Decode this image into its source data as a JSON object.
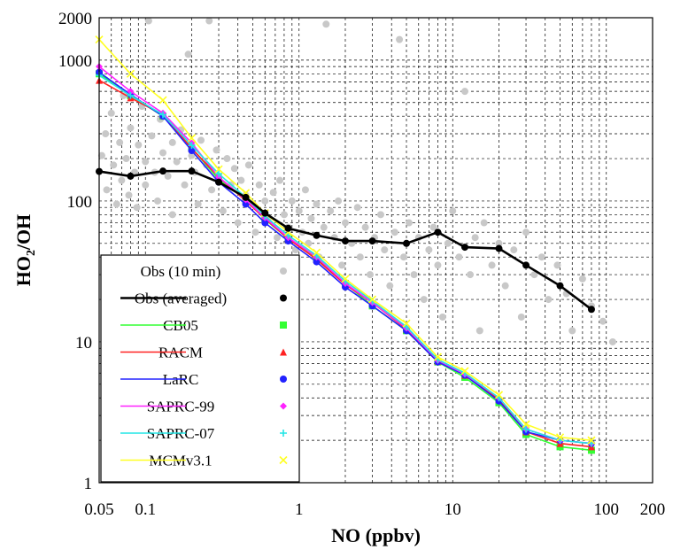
{
  "chart_data": {
    "type": "line",
    "xlabel": "NO (ppbv)",
    "ylabel_main": "HO",
    "ylabel_sub": "2",
    "ylabel_rest": "/OH",
    "x_scale": "log",
    "y_scale": "log",
    "xlim": [
      0.05,
      200
    ],
    "ylim": [
      1,
      2000
    ],
    "grid": true,
    "legend_position": "lower-left",
    "x_ticks": [
      {
        "value": 0.05,
        "label": "0.05"
      },
      {
        "value": 0.1,
        "label": "0.1"
      },
      {
        "value": 1,
        "label": "1"
      },
      {
        "value": 10,
        "label": "10"
      },
      {
        "value": 100,
        "label": "100"
      },
      {
        "value": 200,
        "label": "200"
      }
    ],
    "y_ticks": [
      {
        "value": 1,
        "label": "1"
      },
      {
        "value": 10,
        "label": "10"
      },
      {
        "value": 100,
        "label": "100"
      },
      {
        "value": 1000,
        "label": "1000"
      },
      {
        "value": 2000,
        "label": "2000"
      }
    ],
    "x": [
      0.05,
      0.08,
      0.13,
      0.2,
      0.3,
      0.45,
      0.6,
      0.85,
      1.3,
      2,
      3,
      5,
      8,
      12,
      20,
      30,
      50,
      80
    ],
    "scatter": {
      "name": "Obs (10 min)",
      "color": "#c8c8c8",
      "points": [
        [
          0.052,
          210
        ],
        [
          0.055,
          300
        ],
        [
          0.056,
          120
        ],
        [
          0.06,
          420
        ],
        [
          0.062,
          180
        ],
        [
          0.065,
          95
        ],
        [
          0.068,
          260
        ],
        [
          0.07,
          140
        ],
        [
          0.072,
          560
        ],
        [
          0.075,
          200
        ],
        [
          0.078,
          110
        ],
        [
          0.08,
          330
        ],
        [
          0.085,
          160
        ],
        [
          0.088,
          90
        ],
        [
          0.09,
          250
        ],
        [
          0.095,
          470
        ],
        [
          0.1,
          190
        ],
        [
          0.1,
          130
        ],
        [
          0.105,
          1900
        ],
        [
          0.11,
          290
        ],
        [
          0.115,
          160
        ],
        [
          0.12,
          100
        ],
        [
          0.125,
          380
        ],
        [
          0.13,
          220
        ],
        [
          0.14,
          150
        ],
        [
          0.15,
          260
        ],
        [
          0.15,
          80
        ],
        [
          0.16,
          190
        ],
        [
          0.17,
          320
        ],
        [
          0.18,
          130
        ],
        [
          0.19,
          1100
        ],
        [
          0.2,
          210
        ],
        [
          0.21,
          160
        ],
        [
          0.22,
          95
        ],
        [
          0.23,
          270
        ],
        [
          0.25,
          180
        ],
        [
          0.26,
          1900
        ],
        [
          0.27,
          120
        ],
        [
          0.29,
          230
        ],
        [
          0.3,
          150
        ],
        [
          0.32,
          85
        ],
        [
          0.34,
          200
        ],
        [
          0.36,
          130
        ],
        [
          0.38,
          170
        ],
        [
          0.4,
          70
        ],
        [
          0.42,
          140
        ],
        [
          0.45,
          110
        ],
        [
          0.47,
          180
        ],
        [
          0.5,
          95
        ],
        [
          0.52,
          60
        ],
        [
          0.55,
          130
        ],
        [
          0.6,
          100
        ],
        [
          0.63,
          75
        ],
        [
          0.68,
          115
        ],
        [
          0.72,
          55
        ],
        [
          0.75,
          140
        ],
        [
          0.8,
          80
        ],
        [
          0.85,
          65
        ],
        [
          0.9,
          100
        ],
        [
          0.95,
          45
        ],
        [
          1.0,
          85
        ],
        [
          1.05,
          60
        ],
        [
          1.1,
          120
        ],
        [
          1.15,
          50
        ],
        [
          1.2,
          75
        ],
        [
          1.3,
          95
        ],
        [
          1.35,
          40
        ],
        [
          1.45,
          65
        ],
        [
          1.5,
          1800
        ],
        [
          1.6,
          85
        ],
        [
          1.7,
          55
        ],
        [
          1.8,
          100
        ],
        [
          1.9,
          35
        ],
        [
          2.0,
          70
        ],
        [
          2.2,
          50
        ],
        [
          2.4,
          90
        ],
        [
          2.5,
          40
        ],
        [
          2.7,
          65
        ],
        [
          2.9,
          30
        ],
        [
          3.1,
          55
        ],
        [
          3.4,
          80
        ],
        [
          3.6,
          45
        ],
        [
          3.9,
          25
        ],
        [
          4.2,
          60
        ],
        [
          4.5,
          1400
        ],
        [
          4.8,
          40
        ],
        [
          5.2,
          70
        ],
        [
          5.6,
          30
        ],
        [
          6.0,
          55
        ],
        [
          6.5,
          20
        ],
        [
          7.0,
          45
        ],
        [
          7.5,
          65
        ],
        [
          8.0,
          35
        ],
        [
          8.6,
          15
        ],
        [
          9.3,
          50
        ],
        [
          10,
          85
        ],
        [
          11,
          40
        ],
        [
          12,
          600
        ],
        [
          13,
          30
        ],
        [
          14,
          55
        ],
        [
          15,
          12
        ],
        [
          16,
          70
        ],
        [
          18,
          35
        ],
        [
          20,
          50
        ],
        [
          22,
          25
        ],
        [
          25,
          45
        ],
        [
          28,
          15
        ],
        [
          30,
          60
        ],
        [
          34,
          30
        ],
        [
          38,
          40
        ],
        [
          42,
          20
        ],
        [
          48,
          35
        ],
        [
          55,
          22
        ],
        [
          60,
          12
        ],
        [
          70,
          28
        ],
        [
          80,
          18
        ],
        [
          95,
          14
        ],
        [
          110,
          10
        ]
      ]
    },
    "series": [
      {
        "name": "Obs (averaged)",
        "color": "#000000",
        "marker": "circle",
        "values": [
          162,
          150,
          163,
          163,
          136,
          106,
          82,
          64,
          57,
          52,
          52,
          50,
          60,
          47,
          46,
          35,
          25,
          17
        ]
      },
      {
        "name": "CB05",
        "color": "#33ff33",
        "marker": "square",
        "values": [
          800,
          560,
          400,
          238,
          142,
          102,
          74,
          54,
          39,
          26,
          18,
          12,
          7.2,
          5.6,
          3.7,
          2.2,
          1.8,
          1.7
        ]
      },
      {
        "name": "RACM",
        "color": "#ff2222",
        "marker": "triangle",
        "values": [
          720,
          540,
          410,
          236,
          148,
          100,
          75,
          54,
          38.5,
          25.5,
          19,
          12.3,
          7.3,
          5.8,
          3.9,
          2.3,
          1.9,
          1.8
        ]
      },
      {
        "name": "LaRC",
        "color": "#2222ff",
        "marker": "circle",
        "values": [
          820,
          570,
          400,
          228,
          136,
          95,
          70,
          52,
          37,
          24.5,
          18,
          12,
          7.2,
          5.8,
          3.8,
          2.3,
          2.0,
          1.9
        ]
      },
      {
        "name": "SAPRC-99",
        "color": "#ff22ff",
        "marker": "diamond",
        "values": [
          900,
          600,
          420,
          258,
          148,
          102,
          76,
          55,
          40,
          26,
          19,
          12.5,
          7.4,
          5.9,
          4.0,
          2.4,
          2.0,
          1.9
        ]
      },
      {
        "name": "SAPRC-07",
        "color": "#22e5e5",
        "marker": "plus",
        "values": [
          780,
          560,
          410,
          248,
          156,
          106,
          78,
          57,
          41,
          27,
          19.5,
          12.8,
          7.5,
          6.0,
          4.0,
          2.4,
          2.0,
          1.9
        ]
      },
      {
        "name": "MCMv3.1",
        "color": "#ffff22",
        "marker": "x",
        "values": [
          1400,
          800,
          520,
          280,
          168,
          114,
          82,
          60,
          43,
          28,
          20,
          13.5,
          7.8,
          6.2,
          4.2,
          2.6,
          2.1,
          2.0
        ]
      }
    ]
  }
}
